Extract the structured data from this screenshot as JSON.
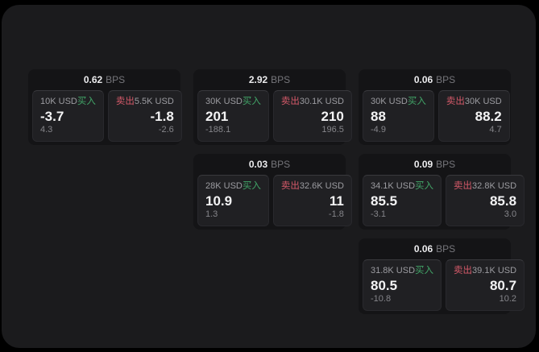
{
  "labels": {
    "buy": "买入",
    "sell": "卖出",
    "bps_unit": "BPS"
  },
  "colors": {
    "page_background": "#000000",
    "panel_background": "#1b1b1d",
    "card_background": "#141416",
    "tile_background": "#202023",
    "buy_green": "#42a568",
    "sell_red": "#d65a6a",
    "primary_text": "#f3f3f4",
    "muted_text": "#85858a"
  },
  "cards": [
    {
      "bps": "0.62",
      "buy": {
        "amount": "10K USD",
        "value": "-3.7",
        "delta": "4.3"
      },
      "sell": {
        "amount": "5.5K USD",
        "value": "-1.8",
        "delta": "-2.6"
      }
    },
    {
      "bps": "2.92",
      "buy": {
        "amount": "30K USD",
        "value": "201",
        "delta": "-188.1"
      },
      "sell": {
        "amount": "30.1K USD",
        "value": "210",
        "delta": "196.5"
      }
    },
    {
      "bps": "0.06",
      "buy": {
        "amount": "30K USD",
        "value": "88",
        "delta": "-4.9"
      },
      "sell": {
        "amount": "30K USD",
        "value": "88.2",
        "delta": "4.7"
      }
    },
    {
      "bps": "0.03",
      "buy": {
        "amount": "28K USD",
        "value": "10.9",
        "delta": "1.3"
      },
      "sell": {
        "amount": "32.6K USD",
        "value": "11",
        "delta": "-1.8"
      }
    },
    {
      "bps": "0.09",
      "buy": {
        "amount": "34.1K USD",
        "value": "85.5",
        "delta": "-3.1"
      },
      "sell": {
        "amount": "32.8K USD",
        "value": "85.8",
        "delta": "3.0"
      }
    },
    {
      "bps": "0.06",
      "buy": {
        "amount": "31.8K USD",
        "value": "80.5",
        "delta": "-10.8"
      },
      "sell": {
        "amount": "39.1K USD",
        "value": "80.7",
        "delta": "10.2"
      }
    }
  ]
}
